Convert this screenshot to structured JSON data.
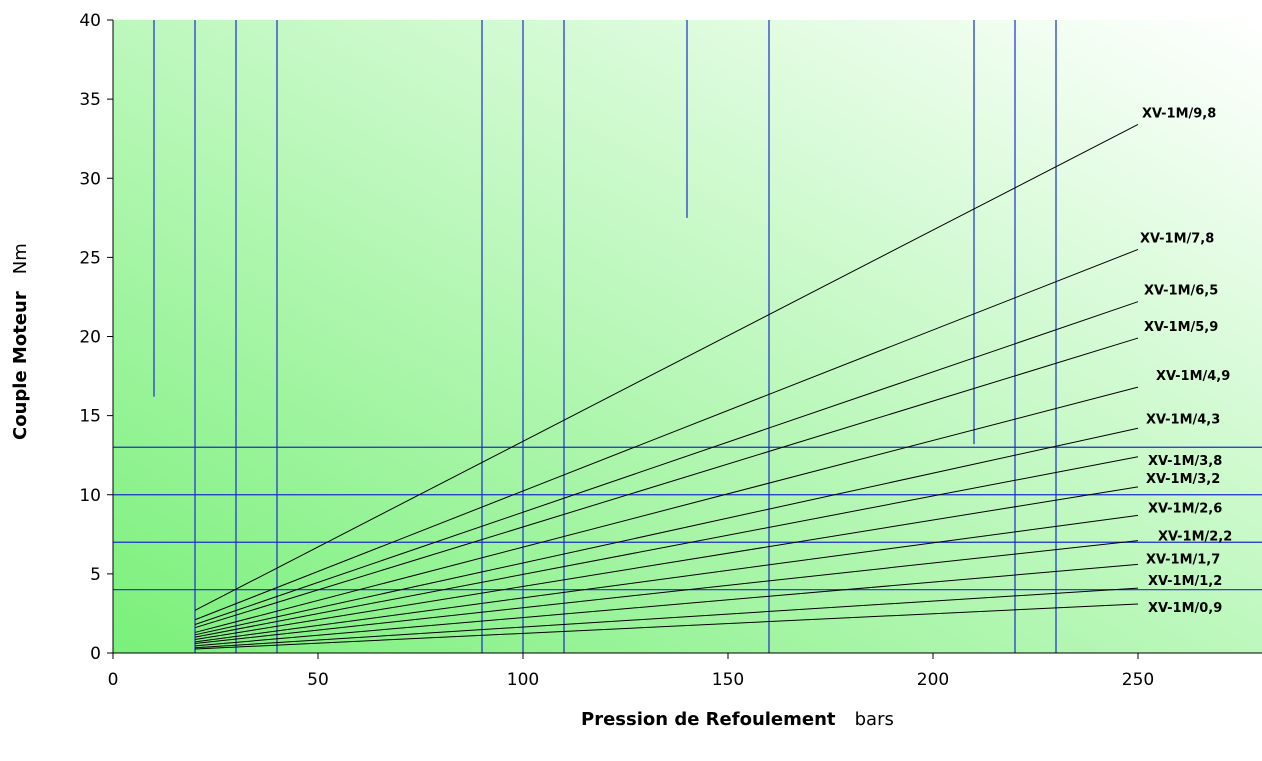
{
  "colors": {
    "gradient_start": "#7af07a",
    "gradient_end": "#ffffff",
    "reference_lines": "#1a2fc8",
    "series_lines": "#000000",
    "axis": "#000000"
  },
  "chart_data": {
    "type": "line",
    "title": "",
    "xlabel": "Pression de Refoulement",
    "xlabel_unit": "bars",
    "ylabel": "Couple Moteur",
    "ylabel_unit": "Nm",
    "xlim": [
      0,
      280
    ],
    "ylim": [
      0,
      40
    ],
    "x_ticks": [
      0,
      50,
      100,
      150,
      200,
      250
    ],
    "y_ticks": [
      0,
      5,
      10,
      15,
      20,
      25,
      30,
      35,
      40
    ],
    "grid": false,
    "legend": "labels at line ends (right)",
    "series": [
      {
        "name": "XV-1M/9,8",
        "x": [
          20,
          250
        ],
        "values": [
          2.7,
          33.4
        ]
      },
      {
        "name": "XV-1M/7,8",
        "x": [
          20,
          250
        ],
        "values": [
          2.1,
          25.5
        ]
      },
      {
        "name": "XV-1M/6,5",
        "x": [
          20,
          250
        ],
        "values": [
          1.8,
          22.2
        ]
      },
      {
        "name": "XV-1M/5,9",
        "x": [
          20,
          250
        ],
        "values": [
          1.6,
          19.9
        ]
      },
      {
        "name": "XV-1M/4,9",
        "x": [
          20,
          250
        ],
        "values": [
          1.3,
          16.8
        ]
      },
      {
        "name": "XV-1M/4,3",
        "x": [
          20,
          250
        ],
        "values": [
          1.15,
          14.2
        ]
      },
      {
        "name": "XV-1M/3,8",
        "x": [
          20,
          250
        ],
        "values": [
          1.0,
          12.4
        ]
      },
      {
        "name": "XV-1M/3,2",
        "x": [
          20,
          250
        ],
        "values": [
          0.85,
          10.5
        ]
      },
      {
        "name": "XV-1M/2,6",
        "x": [
          20,
          250
        ],
        "values": [
          0.7,
          8.7
        ]
      },
      {
        "name": "XV-1M/2,2",
        "x": [
          20,
          250
        ],
        "values": [
          0.6,
          7.1
        ]
      },
      {
        "name": "XV-1M/1,7",
        "x": [
          20,
          250
        ],
        "values": [
          0.45,
          5.6
        ]
      },
      {
        "name": "XV-1M/1,2",
        "x": [
          20,
          250
        ],
        "values": [
          0.33,
          4.1
        ]
      },
      {
        "name": "XV-1M/0,9",
        "x": [
          20,
          250
        ],
        "values": [
          0.25,
          3.1
        ]
      }
    ],
    "vertical_reference_lines": [
      {
        "x": 10,
        "y_from": 16.2,
        "y_to": 40
      },
      {
        "x": 20,
        "y_from": 0,
        "y_to": 40
      },
      {
        "x": 30,
        "y_from": 0,
        "y_to": 40
      },
      {
        "x": 40,
        "y_from": 0,
        "y_to": 40
      },
      {
        "x": 90,
        "y_from": 0,
        "y_to": 40
      },
      {
        "x": 100,
        "y_from": 0,
        "y_to": 40
      },
      {
        "x": 110,
        "y_from": 0,
        "y_to": 40
      },
      {
        "x": 140,
        "y_from": 27.5,
        "y_to": 40
      },
      {
        "x": 160,
        "y_from": 0,
        "y_to": 40
      },
      {
        "x": 210,
        "y_from": 13.2,
        "y_to": 40
      },
      {
        "x": 220,
        "y_from": 0,
        "y_to": 40
      },
      {
        "x": 230,
        "y_from": 0,
        "y_to": 40
      }
    ],
    "horizontal_reference_lines": [
      4,
      7,
      10,
      13
    ]
  }
}
